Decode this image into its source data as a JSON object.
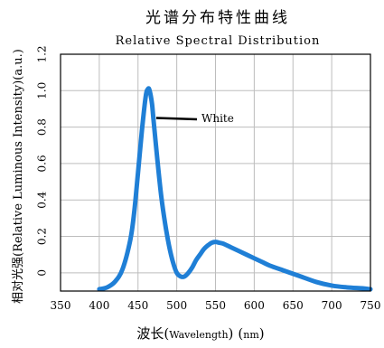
{
  "chart_data": {
    "type": "line",
    "title": "光谱分布特性曲线",
    "subtitle": "Relative Spectral Distribution",
    "xlabel": {
      "main": "波长",
      "paren_left": "(",
      "paren_right": ")",
      "wavelength": "Wavelength",
      "unit": "nm"
    },
    "ylabel": "相对光强(Relative Luminous Intensity)(a.u.)",
    "xlim": [
      350,
      750
    ],
    "ylim": [
      -0.1,
      1.2
    ],
    "x_ticks": [
      350,
      400,
      450,
      500,
      550,
      600,
      650,
      700,
      750
    ],
    "x_tick_labels": [
      "350",
      "400",
      "450",
      "500",
      "550",
      "600",
      "650",
      "700",
      "750"
    ],
    "y_ticks": [
      0,
      0.2,
      0.4,
      0.6,
      0.8,
      1.0,
      1.2
    ],
    "y_tick_labels": [
      "0",
      "0.2",
      "0.4",
      "0.6",
      "0.8",
      "1.0",
      "1.2"
    ],
    "grid": true,
    "series": [
      {
        "name": "White",
        "color": "#1f7fd6",
        "x": [
          400,
          410,
          420,
          430,
          440,
          445,
          450,
          455,
          460,
          463,
          465,
          468,
          470,
          475,
          480,
          485,
          490,
          495,
          500,
          505,
          510,
          515,
          520,
          525,
          530,
          535,
          540,
          545,
          550,
          555,
          560,
          570,
          580,
          590,
          600,
          610,
          620,
          640,
          660,
          680,
          700,
          720,
          740,
          750
        ],
        "y": [
          -0.09,
          -0.08,
          -0.05,
          0.02,
          0.18,
          0.33,
          0.55,
          0.78,
          0.97,
          1.01,
          1.0,
          0.93,
          0.84,
          0.62,
          0.42,
          0.27,
          0.15,
          0.06,
          0.0,
          -0.02,
          -0.02,
          0.0,
          0.03,
          0.07,
          0.1,
          0.13,
          0.15,
          0.165,
          0.17,
          0.165,
          0.16,
          0.14,
          0.12,
          0.1,
          0.08,
          0.06,
          0.04,
          0.01,
          -0.02,
          -0.05,
          -0.07,
          -0.08,
          -0.085,
          -0.09
        ]
      }
    ],
    "annotations": [
      {
        "text": "White",
        "x": 470,
        "y": 0.84
      }
    ]
  }
}
